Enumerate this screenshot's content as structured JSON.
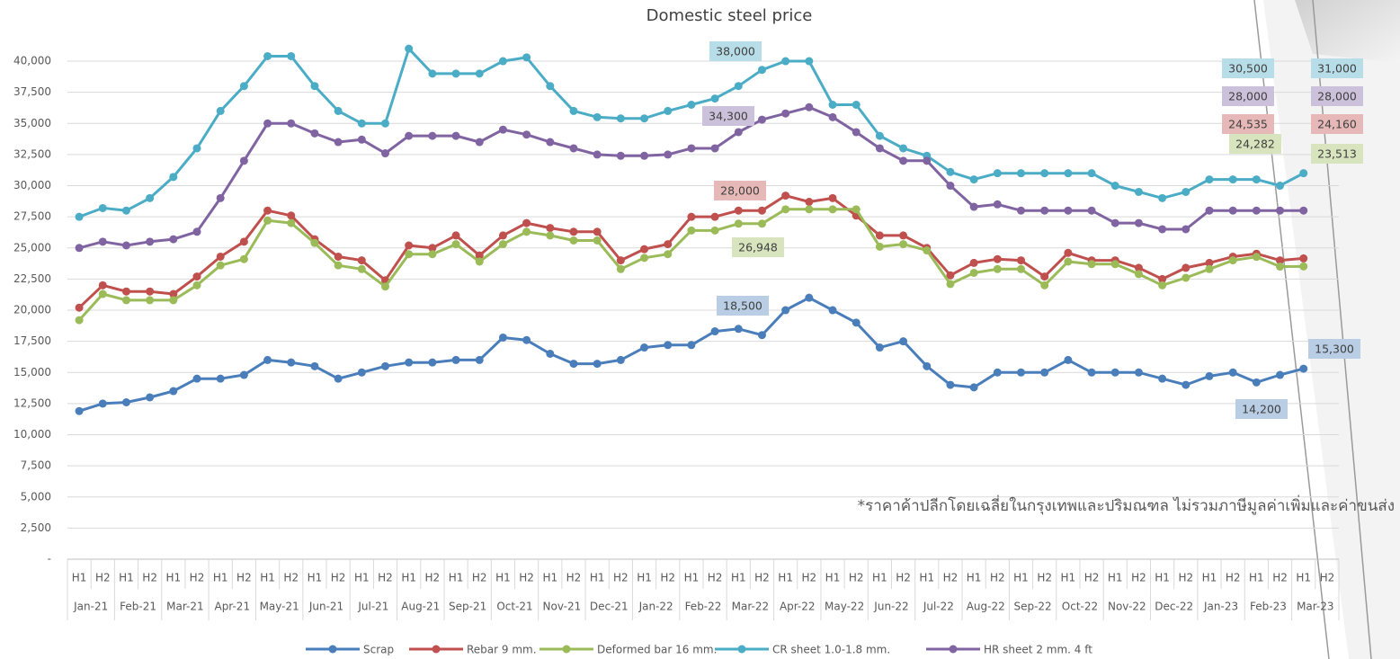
{
  "chart_data": {
    "type": "line",
    "title": "Domestic steel price",
    "note": "*ราคาค้าปลีกโดยเฉลี่ยในกรุงเทพและปริมณฑล ไม่รวมภาษีมูลค่าเพิ่มและค่าขนส่ง",
    "categories": [
      "H1",
      "H2",
      "H1",
      "H2",
      "H1",
      "H2",
      "H1",
      "H2",
      "H1",
      "H2",
      "H1",
      "H2",
      "H1",
      "H2",
      "H1",
      "H2",
      "H1",
      "H2",
      "H1",
      "H2",
      "H1",
      "H2",
      "H1",
      "H2",
      "H1",
      "H2",
      "H1",
      "H2",
      "H1",
      "H2",
      "H1",
      "H2",
      "H1",
      "H2",
      "H1",
      "H2",
      "H1",
      "H2",
      "H1",
      "H2",
      "H1",
      "H2",
      "H1",
      "H2",
      "H1",
      "H2",
      "H1",
      "H2",
      "H1",
      "H2",
      "H1",
      "H2",
      "H1",
      "H2"
    ],
    "category_groups": [
      "Jan-21",
      "Feb-21",
      "Mar-21",
      "Apr-21",
      "May-21",
      "Jun-21",
      "Jul-21",
      "Aug-21",
      "Sep-21",
      "Oct-21",
      "Nov-21",
      "Dec-21",
      "Jan-22",
      "Feb-22",
      "Mar-22",
      "Apr-22",
      "May-22",
      "Jun-22",
      "Jul-22",
      "Aug-22",
      "Sep-22",
      "Oct-22",
      "Nov-22",
      "Dec-22",
      "Jan-23",
      "Feb-23",
      "Mar-23"
    ],
    "ylim": [
      0,
      42500
    ],
    "yticks": [
      {
        "value": 0,
        "label": "-"
      },
      {
        "value": 2500,
        "label": "2,500"
      },
      {
        "value": 5000,
        "label": "5,000"
      },
      {
        "value": 7500,
        "label": "7,500"
      },
      {
        "value": 10000,
        "label": "10,000"
      },
      {
        "value": 12500,
        "label": "12,500"
      },
      {
        "value": 15000,
        "label": "15,000"
      },
      {
        "value": 17500,
        "label": "17,500"
      },
      {
        "value": 20000,
        "label": "20,000"
      },
      {
        "value": 22500,
        "label": "22,500"
      },
      {
        "value": 25000,
        "label": "25,000"
      },
      {
        "value": 27500,
        "label": "27,500"
      },
      {
        "value": 30000,
        "label": "30,000"
      },
      {
        "value": 32500,
        "label": "32,500"
      },
      {
        "value": 35000,
        "label": "35,000"
      },
      {
        "value": 37500,
        "label": "37,500"
      },
      {
        "value": 40000,
        "label": "40,000"
      }
    ],
    "grid": true,
    "legend": "bottom",
    "series": [
      {
        "name": "Scrap",
        "color": "#4a7ebb",
        "label_color": "#b9cde5",
        "values": [
          11900,
          12500,
          12600,
          13000,
          13500,
          14500,
          14500,
          14800,
          16000,
          15800,
          15500,
          14500,
          15000,
          15500,
          15800,
          15800,
          16000,
          16000,
          17800,
          17600,
          16500,
          15700,
          15700,
          16000,
          17000,
          17200,
          17200,
          18300,
          18500,
          18000,
          20000,
          21000,
          20000,
          19000,
          17000,
          17500,
          15500,
          14000,
          13800,
          15000,
          15000,
          15000,
          16000,
          15000,
          15000,
          15000,
          14500,
          14000,
          14700,
          15000,
          14200,
          14800,
          15300,
          null
        ],
        "value_labels": [
          null,
          null,
          null,
          null,
          null,
          null,
          null,
          null,
          null,
          null,
          null,
          null,
          null,
          null,
          null,
          null,
          null,
          null,
          null,
          null,
          null,
          null,
          null,
          null,
          null,
          null,
          null,
          null,
          "18,500",
          null,
          null,
          null,
          null,
          null,
          null,
          null,
          null,
          null,
          null,
          null,
          null,
          null,
          null,
          null,
          null,
          null,
          null,
          null,
          null,
          null,
          "14,200",
          null,
          "15,300",
          null
        ]
      },
      {
        "name": "Rebar 9 mm.",
        "color": "#c0504d",
        "label_color": "#e6b9b8",
        "values": [
          20200,
          22000,
          21500,
          21500,
          21300,
          22700,
          24300,
          25500,
          28000,
          27600,
          25700,
          24300,
          24000,
          22400,
          25200,
          25000,
          26000,
          24400,
          26000,
          27000,
          26600,
          26300,
          26300,
          24000,
          24900,
          25300,
          27500,
          27500,
          28000,
          28000,
          29200,
          28700,
          29000,
          27600,
          26000,
          26000,
          25000,
          22800,
          23800,
          24100,
          24000,
          22700,
          24600,
          24000,
          24000,
          23400,
          22500,
          23400,
          23800,
          24300,
          24535,
          24000,
          24160,
          null
        ],
        "value_labels": [
          null,
          null,
          null,
          null,
          null,
          null,
          null,
          null,
          null,
          null,
          null,
          null,
          null,
          null,
          null,
          null,
          null,
          null,
          null,
          null,
          null,
          null,
          null,
          null,
          null,
          null,
          null,
          null,
          "28,000",
          null,
          null,
          null,
          null,
          null,
          null,
          null,
          null,
          null,
          null,
          null,
          null,
          null,
          null,
          null,
          null,
          null,
          null,
          null,
          null,
          null,
          "24,535",
          null,
          "24,160",
          null
        ]
      },
      {
        "name": "Deformed bar 16 mm.",
        "color": "#9bbb59",
        "label_color": "#d7e4bd",
        "values": [
          19200,
          21300,
          20800,
          20800,
          20800,
          22000,
          23600,
          24100,
          27200,
          27000,
          25400,
          23600,
          23300,
          21900,
          24500,
          24500,
          25300,
          23900,
          25300,
          26300,
          26000,
          25600,
          25600,
          23300,
          24200,
          24500,
          26400,
          26400,
          26948,
          26948,
          28100,
          28100,
          28100,
          28100,
          25100,
          25300,
          24800,
          22100,
          23000,
          23300,
          23300,
          22000,
          23900,
          23700,
          23700,
          22900,
          22000,
          22600,
          23300,
          24000,
          24282,
          23500,
          23513,
          null
        ],
        "value_labels": [
          null,
          null,
          null,
          null,
          null,
          null,
          null,
          null,
          null,
          null,
          null,
          null,
          null,
          null,
          null,
          null,
          null,
          null,
          null,
          null,
          null,
          null,
          null,
          null,
          null,
          null,
          null,
          null,
          "26,948",
          null,
          null,
          null,
          null,
          null,
          null,
          null,
          null,
          null,
          null,
          null,
          null,
          null,
          null,
          null,
          null,
          null,
          null,
          null,
          null,
          null,
          "24,282",
          null,
          "23,513",
          null
        ]
      },
      {
        "name": "CR sheet 1.0-1.8 mm.",
        "color": "#4bacc6",
        "label_color": "#b7dee8",
        "values": [
          27500,
          28200,
          28000,
          29000,
          30700,
          33000,
          36000,
          38000,
          40400,
          40400,
          38000,
          36000,
          35000,
          35000,
          41000,
          39000,
          39000,
          39000,
          40000,
          40300,
          38000,
          36000,
          35500,
          35400,
          35400,
          36000,
          36500,
          37000,
          38000,
          39300,
          40000,
          40000,
          36500,
          36500,
          34000,
          33000,
          32400,
          31100,
          30500,
          31000,
          31000,
          31000,
          31000,
          31000,
          30000,
          29500,
          29000,
          29500,
          30500,
          30500,
          30500,
          30000,
          31000,
          null
        ],
        "value_labels": [
          null,
          null,
          null,
          null,
          null,
          null,
          null,
          null,
          null,
          null,
          null,
          null,
          null,
          null,
          null,
          null,
          null,
          null,
          null,
          null,
          null,
          null,
          null,
          null,
          null,
          null,
          null,
          null,
          "38,000",
          null,
          null,
          null,
          null,
          null,
          null,
          null,
          null,
          null,
          null,
          null,
          null,
          null,
          null,
          null,
          null,
          null,
          null,
          null,
          null,
          null,
          "30,500",
          null,
          "31,000",
          null
        ]
      },
      {
        "name": "HR sheet 2 mm. 4 ft",
        "color": "#8064a2",
        "label_color": "#ccc1da",
        "values": [
          25000,
          25500,
          25200,
          25500,
          25700,
          26300,
          29000,
          32000,
          35000,
          35000,
          34200,
          33500,
          33700,
          32600,
          34000,
          34000,
          34000,
          33500,
          34500,
          34100,
          33500,
          33000,
          32500,
          32400,
          32400,
          32500,
          33000,
          33000,
          34300,
          35300,
          35800,
          36300,
          35500,
          34300,
          33000,
          32000,
          32000,
          30000,
          28300,
          28500,
          28000,
          28000,
          28000,
          28000,
          27000,
          27000,
          26500,
          26500,
          28000,
          28000,
          28000,
          28000,
          28000,
          null
        ],
        "value_labels": [
          null,
          null,
          null,
          null,
          null,
          null,
          null,
          null,
          null,
          null,
          null,
          null,
          null,
          null,
          null,
          null,
          null,
          null,
          null,
          null,
          null,
          null,
          null,
          null,
          null,
          null,
          null,
          null,
          "34,300",
          null,
          null,
          null,
          null,
          null,
          null,
          null,
          null,
          null,
          null,
          null,
          null,
          null,
          null,
          null,
          null,
          null,
          null,
          null,
          null,
          null,
          "28,000",
          null,
          "28,000",
          null
        ]
      }
    ]
  }
}
